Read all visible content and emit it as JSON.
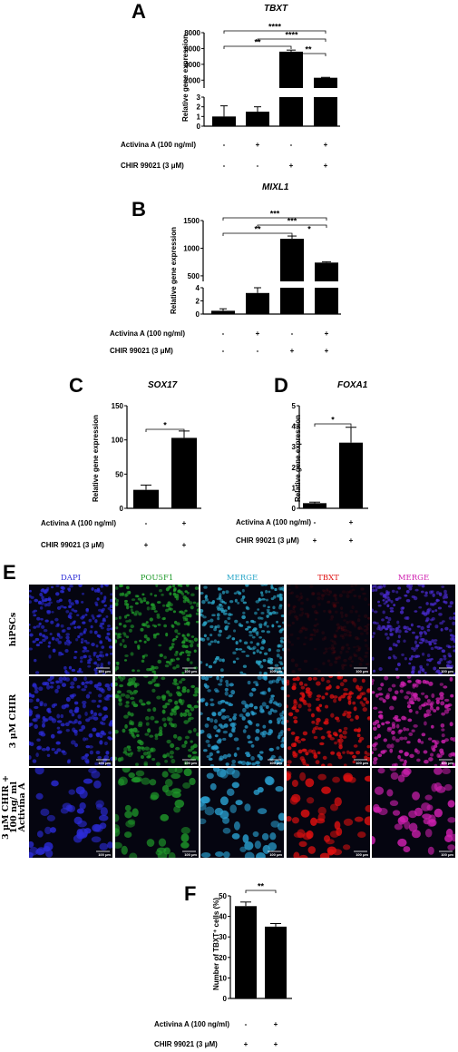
{
  "panels": {
    "A": {
      "letter": "A",
      "gene": "TBXT",
      "ylabel": "Relative gene expression"
    },
    "B": {
      "letter": "B",
      "gene": "MIXL1",
      "ylabel": "Relative gene expression"
    },
    "C": {
      "letter": "C",
      "gene": "SOX17",
      "ylabel": "Relative gene expression"
    },
    "D": {
      "letter": "D",
      "gene": "FOXA1",
      "ylabel": "Relative gene expression"
    },
    "E": {
      "letter": "E"
    },
    "F": {
      "letter": "F",
      "ylabel": "Number of TBXT⁺ cells (%)"
    }
  },
  "treatments": {
    "activina": "Activina A  (100 ng/ml)",
    "chir": "CHIR 99021 (3 μM)"
  },
  "chart_data": [
    {
      "panel": "A",
      "type": "bar",
      "title": "TBXT",
      "ylabel": "Relative gene expression",
      "broken_axis": {
        "lower_ylim": [
          0,
          3
        ],
        "upper_ylim": [
          1000,
          8000
        ],
        "lower_ticks": [
          "0",
          "1",
          "2",
          "3"
        ],
        "upper_ticks": [
          "2000",
          "4000",
          "6000",
          "8000"
        ]
      },
      "categories": [
        "ctrl",
        "ActA",
        "CHIR",
        "CHIR+ActA"
      ],
      "activina": [
        "-",
        "+",
        "-",
        "+"
      ],
      "chir": [
        "-",
        "-",
        "+",
        "+"
      ],
      "values": [
        1.0,
        1.5,
        5600,
        2300
      ],
      "errors": [
        1.1,
        0.5,
        200,
        50
      ],
      "significance": [
        {
          "from": 0,
          "to": 3,
          "label": "****"
        },
        {
          "from": 1,
          "to": 3,
          "label": "****"
        },
        {
          "from": 0,
          "to": 2,
          "label": "**"
        },
        {
          "from": 2,
          "to": 3,
          "label": "**"
        }
      ]
    },
    {
      "panel": "B",
      "type": "bar",
      "title": "MIXL1",
      "ylabel": "Relative gene expression",
      "broken_axis": {
        "lower_ylim": [
          0,
          4
        ],
        "upper_ylim": [
          400,
          1500
        ],
        "lower_ticks": [
          "0",
          "2",
          "4"
        ],
        "upper_ticks": [
          "500",
          "1000",
          "1500"
        ]
      },
      "categories": [
        "ctrl",
        "ActA",
        "CHIR",
        "CHIR+ActA"
      ],
      "activina": [
        "-",
        "+",
        "-",
        "+"
      ],
      "chir": [
        "-",
        "-",
        "+",
        "+"
      ],
      "values": [
        0.5,
        3.2,
        1170,
        740
      ],
      "errors": [
        0.3,
        1.2,
        50,
        15
      ],
      "significance": [
        {
          "from": 0,
          "to": 3,
          "label": "***"
        },
        {
          "from": 1,
          "to": 3,
          "label": "***"
        },
        {
          "from": 0,
          "to": 2,
          "label": "**"
        },
        {
          "from": 2,
          "to": 3,
          "label": "*"
        }
      ]
    },
    {
      "panel": "C",
      "type": "bar",
      "title": "SOX17",
      "ylabel": "Relative gene expression",
      "ylim": [
        0,
        150
      ],
      "yticks": [
        "0",
        "50",
        "100",
        "150"
      ],
      "categories": [
        "CHIR",
        "CHIR+ActA"
      ],
      "activina": [
        "-",
        "+"
      ],
      "chir": [
        "+",
        "+"
      ],
      "values": [
        27,
        103
      ],
      "errors": [
        7,
        10
      ],
      "significance": [
        {
          "from": 0,
          "to": 1,
          "label": "*"
        }
      ]
    },
    {
      "panel": "D",
      "type": "bar",
      "title": "FOXA1",
      "ylabel": "Relative gene expression",
      "ylim": [
        0,
        5
      ],
      "yticks": [
        "0",
        "1",
        "2",
        "3",
        "4",
        "5"
      ],
      "categories": [
        "CHIR",
        "CHIR+ActA"
      ],
      "activina": [
        "-",
        "+"
      ],
      "chir": [
        "+",
        "+"
      ],
      "values": [
        0.25,
        3.2
      ],
      "errors": [
        0.05,
        0.75
      ],
      "significance": [
        {
          "from": 0,
          "to": 1,
          "label": "*"
        }
      ]
    },
    {
      "panel": "F",
      "type": "bar",
      "ylabel": "Number of TBXT⁺ cells (%)",
      "ylim": [
        0,
        50
      ],
      "yticks": [
        "0",
        "10",
        "20",
        "30",
        "40",
        "50"
      ],
      "categories": [
        "CHIR",
        "CHIR+ActA"
      ],
      "activina": [
        "-",
        "+"
      ],
      "chir": [
        "+",
        "+"
      ],
      "values": [
        45,
        35
      ],
      "errors": [
        2,
        1.5
      ],
      "significance": [
        {
          "from": 0,
          "to": 1,
          "label": "**"
        }
      ]
    }
  ],
  "micrographs": {
    "columns": [
      {
        "label": "DAPI",
        "color": "#2b2bd6"
      },
      {
        "label": "POU5F1",
        "color": "#1f9a2a"
      },
      {
        "label": "MERGE",
        "color": "#2aa7c9"
      },
      {
        "label": "TBXT",
        "color": "#e01010"
      },
      {
        "label": "MERGE",
        "color": "#d020b0"
      }
    ],
    "rows": [
      {
        "label": "hiPSCs"
      },
      {
        "label": "3 μM CHIR"
      },
      {
        "label_line1": "3 μM CHIR +",
        "label_line2": "100 ng/ ml",
        "label_line3": "Activina A"
      }
    ],
    "scale_bar": "100 μm"
  }
}
